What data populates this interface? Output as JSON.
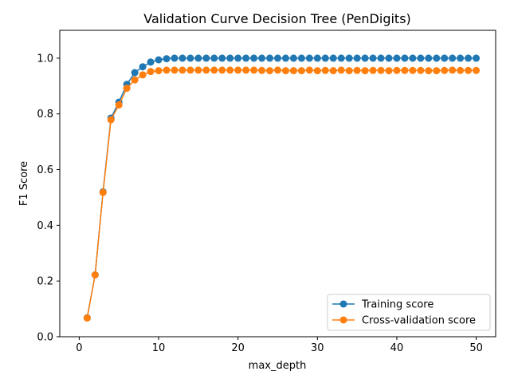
{
  "chart_data": {
    "type": "line",
    "title": "Validation Curve Decision Tree (PenDigits)",
    "xlabel": "max_depth",
    "ylabel": "F1 Score",
    "xlim": [
      -2.45,
      52.45
    ],
    "ylim": [
      0.0,
      1.1
    ],
    "xticks": [
      0,
      10,
      20,
      30,
      40,
      50
    ],
    "yticks": [
      0.0,
      0.2,
      0.4,
      0.6,
      0.8,
      1.0
    ],
    "ytick_labels": [
      "0.0",
      "0.2",
      "0.4",
      "0.6",
      "0.8",
      "1.0"
    ],
    "grid": false,
    "legend_position": "lower-right",
    "x": [
      1,
      2,
      3,
      4,
      5,
      6,
      7,
      8,
      9,
      10,
      11,
      12,
      13,
      14,
      15,
      16,
      17,
      18,
      19,
      20,
      21,
      22,
      23,
      24,
      25,
      26,
      27,
      28,
      29,
      30,
      31,
      32,
      33,
      34,
      35,
      36,
      37,
      38,
      39,
      40,
      41,
      42,
      43,
      44,
      45,
      46,
      47,
      48,
      49,
      50
    ],
    "series": [
      {
        "name": "Training score",
        "color": "#1f77b4",
        "values": [
          0.068,
          0.222,
          0.52,
          0.785,
          0.842,
          0.906,
          0.948,
          0.969,
          0.986,
          0.994,
          0.998,
          1.0,
          1.0,
          1.0,
          1.0,
          1.0,
          1.0,
          1.0,
          1.0,
          1.0,
          1.0,
          1.0,
          1.0,
          1.0,
          1.0,
          1.0,
          1.0,
          1.0,
          1.0,
          1.0,
          1.0,
          1.0,
          1.0,
          1.0,
          1.0,
          1.0,
          1.0,
          1.0,
          1.0,
          1.0,
          1.0,
          1.0,
          1.0,
          1.0,
          1.0,
          1.0,
          1.0,
          1.0,
          1.0,
          1.0
        ]
      },
      {
        "name": "Cross-validation score",
        "color": "#ff7f0e",
        "values": [
          0.067,
          0.222,
          0.518,
          0.779,
          0.832,
          0.892,
          0.922,
          0.94,
          0.952,
          0.955,
          0.957,
          0.957,
          0.957,
          0.957,
          0.957,
          0.957,
          0.957,
          0.957,
          0.957,
          0.957,
          0.957,
          0.957,
          0.956,
          0.955,
          0.957,
          0.955,
          0.955,
          0.955,
          0.957,
          0.955,
          0.956,
          0.955,
          0.957,
          0.955,
          0.956,
          0.955,
          0.956,
          0.956,
          0.955,
          0.956,
          0.956,
          0.956,
          0.956,
          0.955,
          0.955,
          0.956,
          0.957,
          0.956,
          0.956,
          0.956
        ]
      }
    ]
  }
}
